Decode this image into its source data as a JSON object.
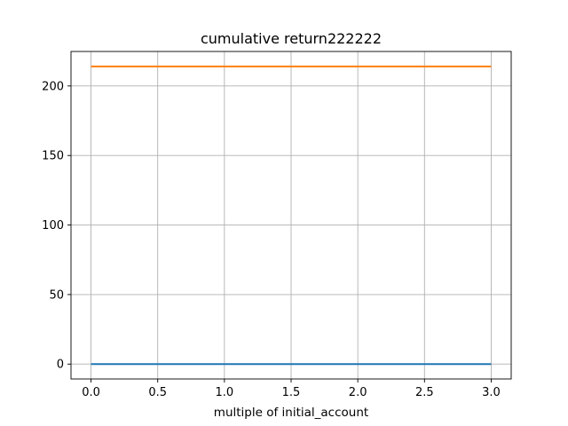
{
  "chart_data": {
    "type": "line",
    "title": "cumulative return222222",
    "xlabel": "multiple of initial_account",
    "ylabel": "",
    "xlim": [
      -0.15,
      3.15
    ],
    "ylim": [
      -10.7,
      224.8
    ],
    "xticks": [
      0.0,
      0.5,
      1.0,
      1.5,
      2.0,
      2.5,
      3.0
    ],
    "xtick_labels": [
      "0.0",
      "0.5",
      "1.0",
      "1.5",
      "2.0",
      "2.5",
      "3.0"
    ],
    "yticks": [
      0,
      50,
      100,
      150,
      200
    ],
    "ytick_labels": [
      "0",
      "50",
      "100",
      "150",
      "200"
    ],
    "grid": true,
    "legend": "none",
    "series": [
      {
        "color": "#1f77b4",
        "x": [
          0.0,
          0.5,
          1.0,
          1.5,
          2.0,
          2.5,
          3.0
        ],
        "y": [
          0.0,
          0.0,
          0.0,
          0.0,
          0.0,
          0.0,
          0.0
        ]
      },
      {
        "color": "#ff7f0e",
        "x": [
          0.0,
          0.5,
          1.0,
          1.5,
          2.0,
          2.5,
          3.0
        ],
        "y": [
          214.0,
          214.0,
          214.0,
          214.0,
          214.0,
          214.0,
          214.0
        ]
      }
    ]
  }
}
